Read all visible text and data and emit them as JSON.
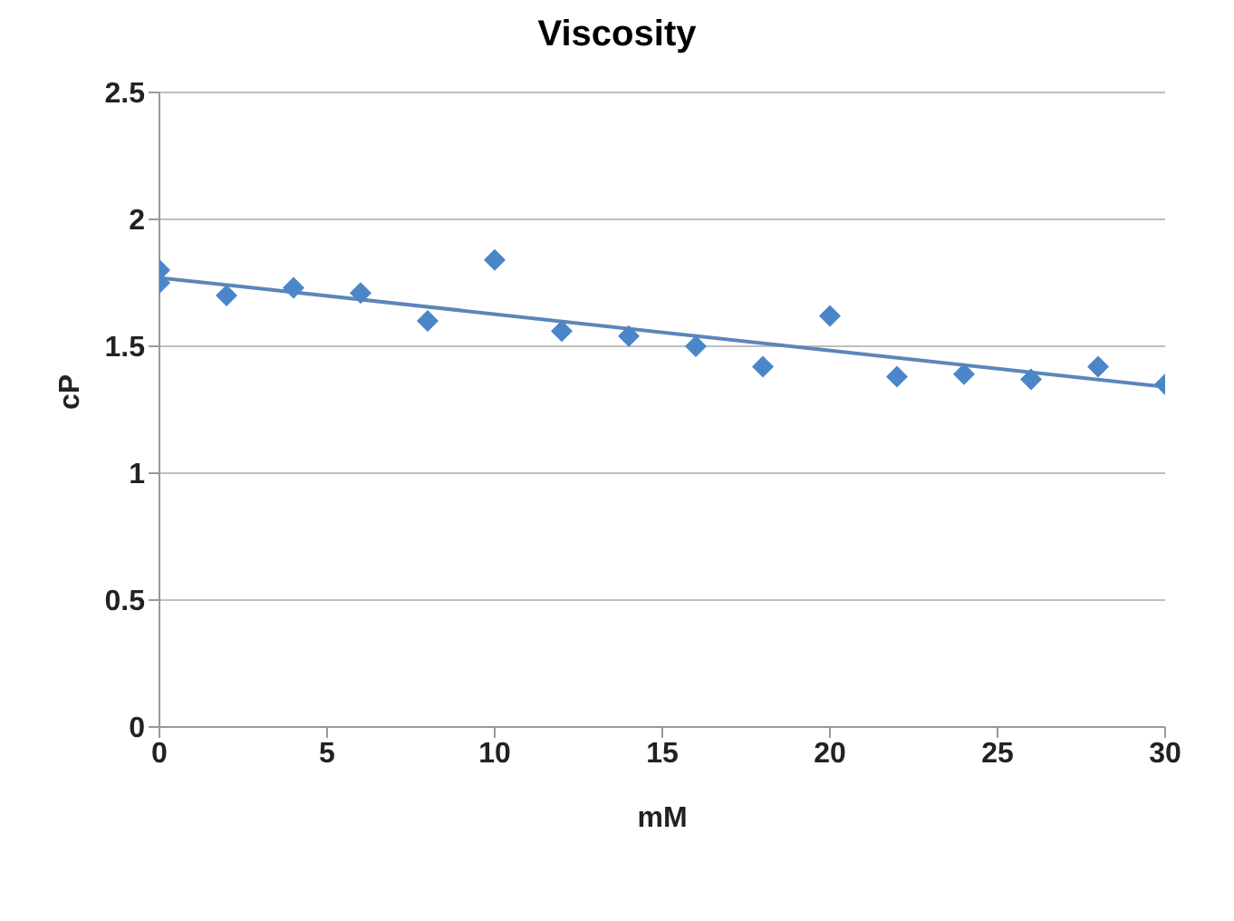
{
  "chart_data": {
    "type": "scatter",
    "title": "Viscosity",
    "xlabel": "mM",
    "ylabel": "cP",
    "xlim": [
      0,
      30
    ],
    "xticks": [
      0,
      5,
      10,
      15,
      20,
      25,
      30
    ],
    "ylim": [
      0,
      2.5
    ],
    "yticks": [
      0,
      0.5,
      1,
      1.5,
      2,
      2.5
    ],
    "grid": "y",
    "legend": false,
    "series": [
      {
        "marker": "diamond",
        "color": "#4a86c8",
        "x": [
          0,
          0,
          2,
          4,
          6,
          8,
          10,
          12,
          14,
          16,
          18,
          20,
          22,
          24,
          26,
          28,
          30
        ],
        "values": [
          1.8,
          1.75,
          1.7,
          1.73,
          1.71,
          1.6,
          1.84,
          1.56,
          1.54,
          1.5,
          1.42,
          1.62,
          1.38,
          1.39,
          1.37,
          1.42,
          1.35
        ]
      },
      {
        "type": "line",
        "marker": "none",
        "color": "#5b86b8",
        "x": [
          0,
          30
        ],
        "values": [
          1.77,
          1.34
        ]
      }
    ]
  }
}
